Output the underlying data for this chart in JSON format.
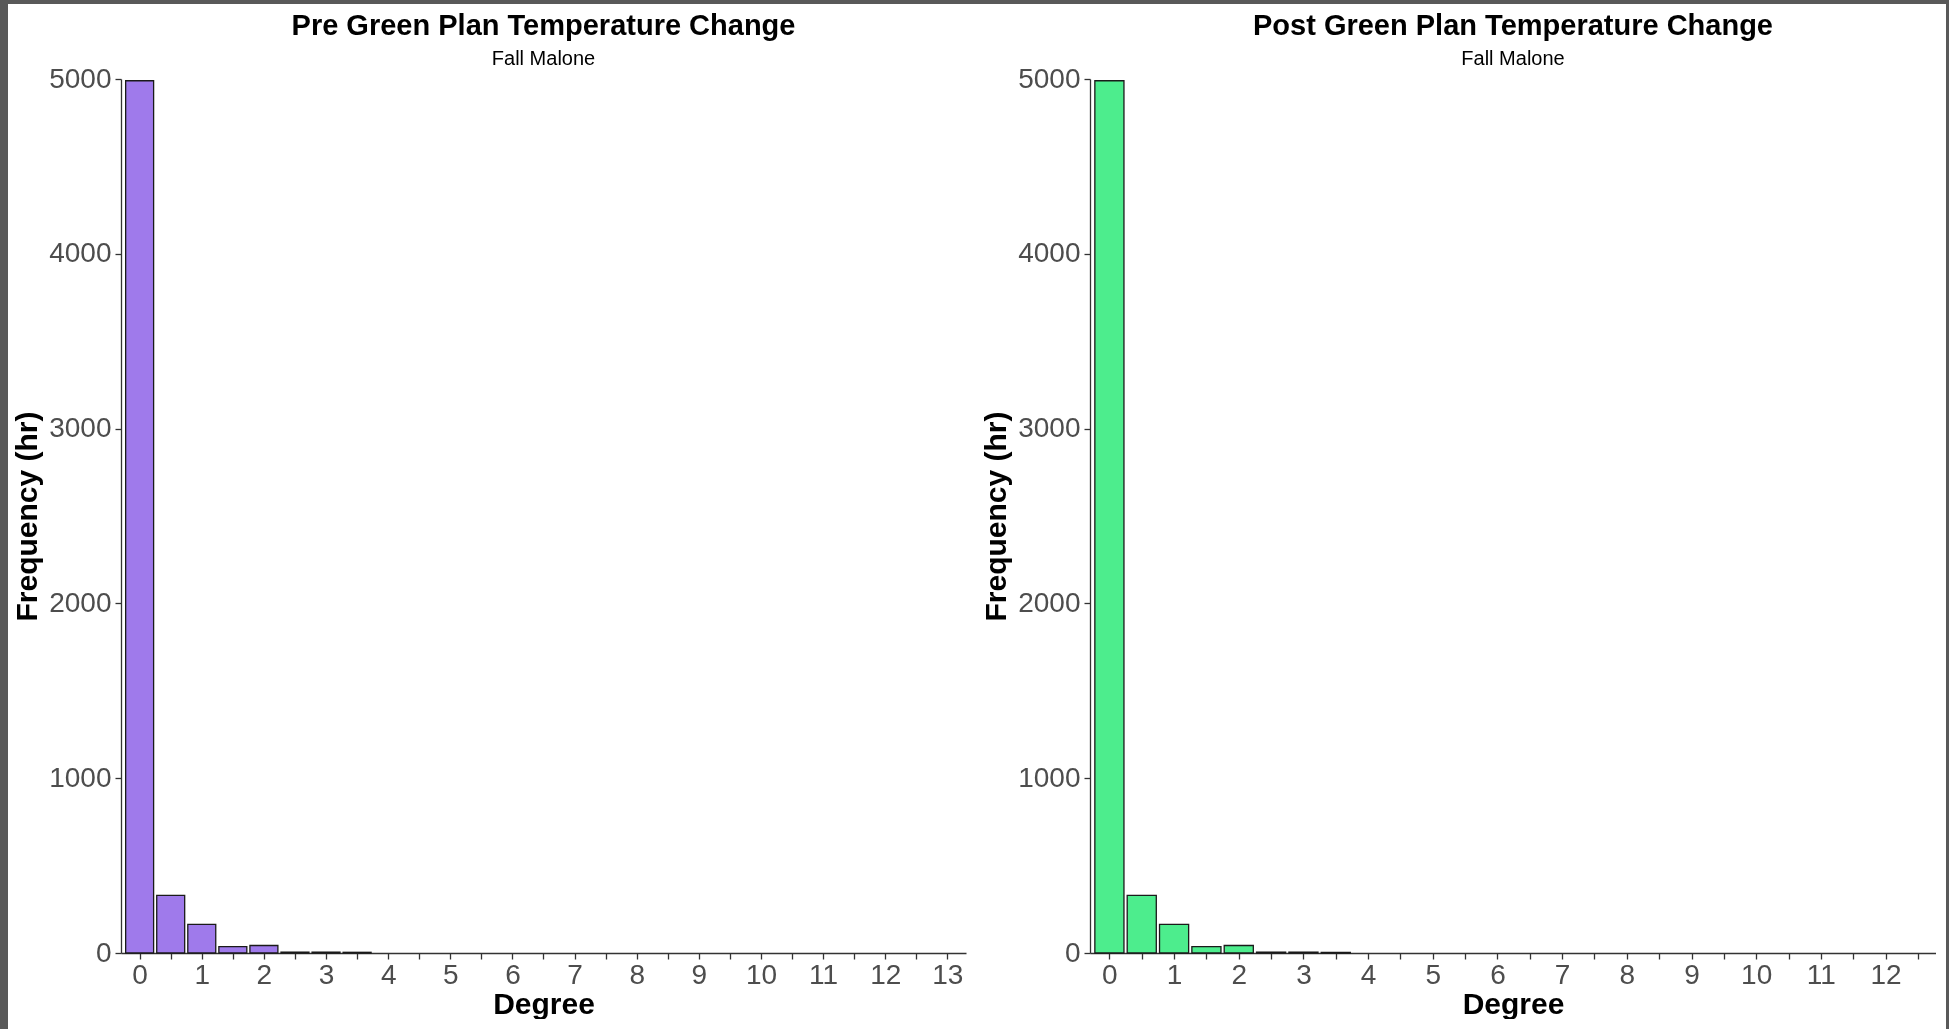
{
  "chart_data": [
    {
      "type": "bar",
      "title": "Pre Green Plan Temperature Change",
      "subtitle": "Fall Malone",
      "xlabel": "Degree",
      "ylabel": "Frequency (hr)",
      "x": [
        0,
        0.5,
        1,
        1.5,
        2,
        2.5,
        3,
        3.5
      ],
      "values": [
        4990,
        330,
        164,
        36,
        43,
        5,
        5,
        4
      ],
      "color": "#9f7aeb",
      "xlim": [
        -0.3,
        13.3
      ],
      "xticks": [
        0,
        {
          "value": 0.5,
          "label": null
        },
        1,
        {
          "value": 1.5,
          "label": null
        },
        2,
        {
          "value": 2.5,
          "label": null
        },
        3,
        {
          "value": 3.5,
          "label": null
        },
        4,
        {
          "value": 4.5,
          "label": null
        },
        5,
        {
          "value": 5.5,
          "label": null
        },
        6,
        {
          "value": 6.5,
          "label": null
        },
        7,
        {
          "value": 7.5,
          "label": null
        },
        8,
        {
          "value": 8.5,
          "label": null
        },
        9,
        {
          "value": 9.5,
          "label": null
        },
        10,
        {
          "value": 10.5,
          "label": null
        },
        11,
        {
          "value": 11.5,
          "label": null
        },
        12,
        {
          "value": 12.5,
          "label": null
        },
        13
      ],
      "ylim": [
        0,
        5000
      ],
      "yticks": [
        0,
        1000,
        2000,
        3000,
        4000,
        5000
      ]
    },
    {
      "type": "bar",
      "title": "Post Green Plan Temperature Change",
      "subtitle": "Fall Malone",
      "xlabel": "Degree",
      "ylabel": "Frequency (hr)",
      "x": [
        0,
        0.5,
        1,
        1.5,
        2,
        2.5,
        3,
        3.5
      ],
      "values": [
        4990,
        330,
        164,
        36,
        43,
        5,
        5,
        4
      ],
      "color": "#4ded8d",
      "xlim": [
        -0.3,
        12.78
      ],
      "xticks": [
        0,
        {
          "value": 0.5,
          "label": null
        },
        1,
        {
          "value": 1.5,
          "label": null
        },
        2,
        {
          "value": 2.5,
          "label": null
        },
        3,
        {
          "value": 3.5,
          "label": null
        },
        4,
        {
          "value": 4.5,
          "label": null
        },
        5,
        {
          "value": 5.5,
          "label": null
        },
        6,
        {
          "value": 6.5,
          "label": null
        },
        7,
        {
          "value": 7.5,
          "label": null
        },
        8,
        {
          "value": 8.5,
          "label": null
        },
        9,
        {
          "value": 9.5,
          "label": null
        },
        10,
        {
          "value": 10.5,
          "label": null
        },
        11,
        {
          "value": 11.5,
          "label": null
        },
        12,
        {
          "value": 12.5,
          "label": null
        }
      ],
      "ylim": [
        0,
        5000
      ],
      "yticks": [
        0,
        1000,
        2000,
        3000,
        4000,
        5000
      ]
    }
  ]
}
